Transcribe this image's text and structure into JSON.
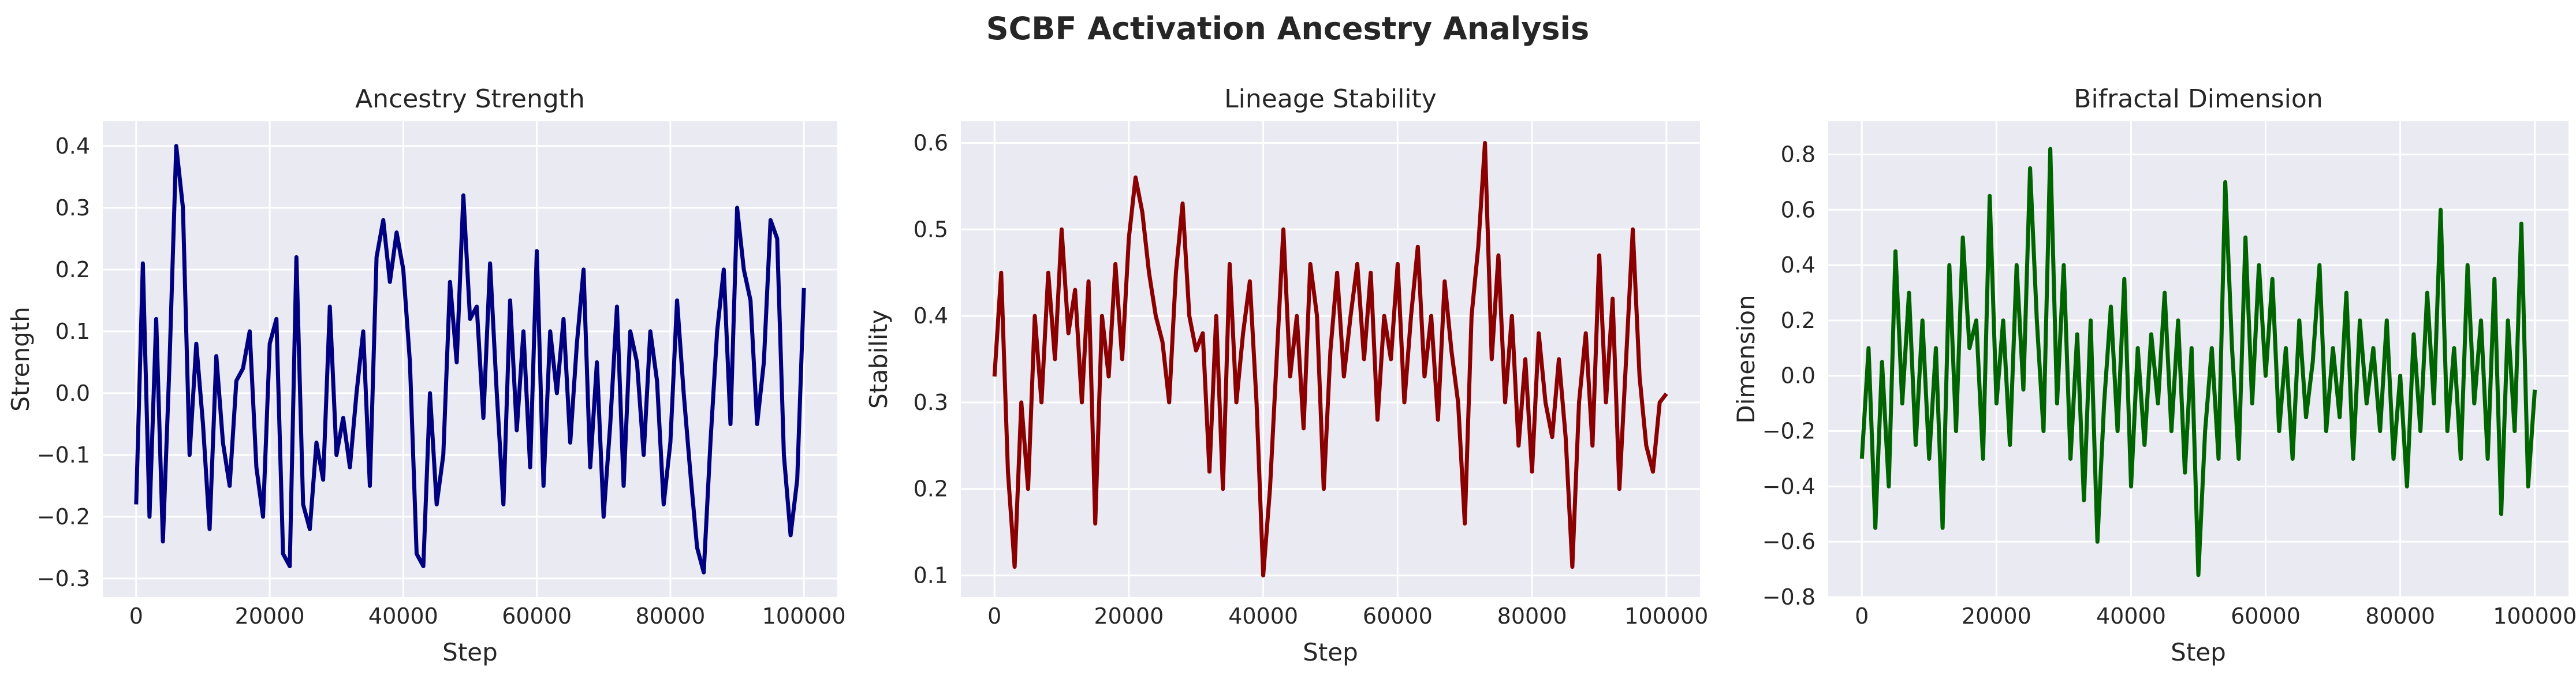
{
  "figure": {
    "suptitle": "SCBF Activation Ancestry Analysis",
    "background": "#ffffff",
    "axes_facecolor": "#eaeaf2",
    "grid_color": "#ffffff",
    "text_color": "#262626"
  },
  "chart_data": [
    {
      "type": "line",
      "title": "Ancestry Strength",
      "xlabel": "Step",
      "ylabel": "Strength",
      "color": "#000080",
      "grid": true,
      "xlim": [
        -5000,
        105000
      ],
      "ylim": [
        -0.33,
        0.44
      ],
      "xticks": [
        0,
        20000,
        40000,
        60000,
        80000,
        100000
      ],
      "xtick_labels": [
        "0",
        "20000",
        "40000",
        "60000",
        "80000",
        "100000"
      ],
      "yticks": [
        -0.3,
        -0.2,
        -0.1,
        0.0,
        0.1,
        0.2,
        0.3,
        0.4
      ],
      "ytick_labels": [
        "−0.3",
        "−0.2",
        "−0.1",
        "0.0",
        "0.1",
        "0.2",
        "0.3",
        "0.4"
      ],
      "x": [
        0,
        1000,
        2000,
        3000,
        4000,
        5000,
        6000,
        7000,
        8000,
        9000,
        10000,
        11000,
        12000,
        13000,
        14000,
        15000,
        16000,
        17000,
        18000,
        19000,
        20000,
        21000,
        22000,
        23000,
        24000,
        25000,
        26000,
        27000,
        28000,
        29000,
        30000,
        31000,
        32000,
        33000,
        34000,
        35000,
        36000,
        37000,
        38000,
        39000,
        40000,
        41000,
        42000,
        43000,
        44000,
        45000,
        46000,
        47000,
        48000,
        49000,
        50000,
        51000,
        52000,
        53000,
        54000,
        55000,
        56000,
        57000,
        58000,
        59000,
        60000,
        61000,
        62000,
        63000,
        64000,
        65000,
        66000,
        67000,
        68000,
        69000,
        70000,
        71000,
        72000,
        73000,
        74000,
        75000,
        76000,
        77000,
        78000,
        79000,
        80000,
        81000,
        82000,
        83000,
        84000,
        85000,
        86000,
        87000,
        88000,
        89000,
        90000,
        91000,
        92000,
        93000,
        94000,
        95000,
        96000,
        97000,
        98000,
        99000,
        100000
      ],
      "y": [
        -0.18,
        0.21,
        -0.2,
        0.12,
        -0.24,
        0.05,
        0.4,
        0.3,
        -0.1,
        0.08,
        -0.05,
        -0.22,
        0.06,
        -0.08,
        -0.15,
        0.02,
        0.04,
        0.1,
        -0.12,
        -0.2,
        0.08,
        0.12,
        -0.26,
        -0.28,
        0.22,
        -0.18,
        -0.22,
        -0.08,
        -0.14,
        0.14,
        -0.1,
        -0.04,
        -0.12,
        0.0,
        0.1,
        -0.15,
        0.22,
        0.28,
        0.18,
        0.26,
        0.2,
        0.05,
        -0.26,
        -0.28,
        0.0,
        -0.18,
        -0.1,
        0.18,
        0.05,
        0.32,
        0.12,
        0.14,
        -0.04,
        0.21,
        0.0,
        -0.18,
        0.15,
        -0.06,
        0.1,
        -0.12,
        0.23,
        -0.15,
        0.1,
        0.0,
        0.12,
        -0.08,
        0.08,
        0.2,
        -0.12,
        0.05,
        -0.2,
        -0.05,
        0.14,
        -0.15,
        0.1,
        0.05,
        -0.1,
        0.1,
        0.02,
        -0.18,
        -0.08,
        0.15,
        0.0,
        -0.13,
        -0.25,
        -0.29,
        -0.08,
        0.1,
        0.2,
        -0.05,
        0.3,
        0.2,
        0.15,
        -0.05,
        0.05,
        0.28,
        0.25,
        -0.1,
        -0.23,
        -0.14,
        0.17
      ]
    },
    {
      "type": "line",
      "title": "Lineage Stability",
      "xlabel": "Step",
      "ylabel": "Stability",
      "color": "#8b0000",
      "grid": true,
      "xlim": [
        -5000,
        105000
      ],
      "ylim": [
        0.075,
        0.625
      ],
      "xticks": [
        0,
        20000,
        40000,
        60000,
        80000,
        100000
      ],
      "xtick_labels": [
        "0",
        "20000",
        "40000",
        "60000",
        "80000",
        "100000"
      ],
      "yticks": [
        0.1,
        0.2,
        0.3,
        0.4,
        0.5,
        0.6
      ],
      "ytick_labels": [
        "0.1",
        "0.2",
        "0.3",
        "0.4",
        "0.5",
        "0.6"
      ],
      "x": [
        0,
        1000,
        2000,
        3000,
        4000,
        5000,
        6000,
        7000,
        8000,
        9000,
        10000,
        11000,
        12000,
        13000,
        14000,
        15000,
        16000,
        17000,
        18000,
        19000,
        20000,
        21000,
        22000,
        23000,
        24000,
        25000,
        26000,
        27000,
        28000,
        29000,
        30000,
        31000,
        32000,
        33000,
        34000,
        35000,
        36000,
        37000,
        38000,
        39000,
        40000,
        41000,
        42000,
        43000,
        44000,
        45000,
        46000,
        47000,
        48000,
        49000,
        50000,
        51000,
        52000,
        53000,
        54000,
        55000,
        56000,
        57000,
        58000,
        59000,
        60000,
        61000,
        62000,
        63000,
        64000,
        65000,
        66000,
        67000,
        68000,
        69000,
        70000,
        71000,
        72000,
        73000,
        74000,
        75000,
        76000,
        77000,
        78000,
        79000,
        80000,
        81000,
        82000,
        83000,
        84000,
        85000,
        86000,
        87000,
        88000,
        89000,
        90000,
        91000,
        92000,
        93000,
        94000,
        95000,
        96000,
        97000,
        98000,
        99000,
        100000
      ],
      "y": [
        0.33,
        0.45,
        0.22,
        0.11,
        0.3,
        0.2,
        0.4,
        0.3,
        0.45,
        0.35,
        0.5,
        0.38,
        0.43,
        0.3,
        0.44,
        0.16,
        0.4,
        0.33,
        0.46,
        0.35,
        0.49,
        0.56,
        0.52,
        0.45,
        0.4,
        0.37,
        0.3,
        0.45,
        0.53,
        0.4,
        0.36,
        0.38,
        0.22,
        0.4,
        0.2,
        0.46,
        0.3,
        0.38,
        0.44,
        0.3,
        0.1,
        0.2,
        0.35,
        0.5,
        0.33,
        0.4,
        0.27,
        0.46,
        0.4,
        0.2,
        0.36,
        0.45,
        0.33,
        0.4,
        0.46,
        0.35,
        0.45,
        0.28,
        0.4,
        0.35,
        0.46,
        0.3,
        0.4,
        0.48,
        0.33,
        0.4,
        0.28,
        0.44,
        0.36,
        0.3,
        0.16,
        0.4,
        0.48,
        0.6,
        0.35,
        0.47,
        0.3,
        0.4,
        0.25,
        0.35,
        0.22,
        0.38,
        0.3,
        0.26,
        0.35,
        0.26,
        0.11,
        0.3,
        0.38,
        0.25,
        0.47,
        0.3,
        0.42,
        0.2,
        0.35,
        0.5,
        0.33,
        0.25,
        0.22,
        0.3,
        0.31
      ]
    },
    {
      "type": "line",
      "title": "Bifractal Dimension",
      "xlabel": "Step",
      "ylabel": "Dimension",
      "color": "#006400",
      "grid": true,
      "xlim": [
        -5000,
        105000
      ],
      "ylim": [
        -0.8,
        0.92
      ],
      "xticks": [
        0,
        20000,
        40000,
        60000,
        80000,
        100000
      ],
      "xtick_labels": [
        "0",
        "20000",
        "40000",
        "60000",
        "80000",
        "100000"
      ],
      "yticks": [
        -0.8,
        -0.6,
        -0.4,
        -0.2,
        0.0,
        0.2,
        0.4,
        0.6,
        0.8
      ],
      "ytick_labels": [
        "−0.8",
        "−0.6",
        "−0.4",
        "−0.2",
        "0.0",
        "0.2",
        "0.4",
        "0.6",
        "0.8"
      ],
      "x": [
        0,
        1000,
        2000,
        3000,
        4000,
        5000,
        6000,
        7000,
        8000,
        9000,
        10000,
        11000,
        12000,
        13000,
        14000,
        15000,
        16000,
        17000,
        18000,
        19000,
        20000,
        21000,
        22000,
        23000,
        24000,
        25000,
        26000,
        27000,
        28000,
        29000,
        30000,
        31000,
        32000,
        33000,
        34000,
        35000,
        36000,
        37000,
        38000,
        39000,
        40000,
        41000,
        42000,
        43000,
        44000,
        45000,
        46000,
        47000,
        48000,
        49000,
        50000,
        51000,
        52000,
        53000,
        54000,
        55000,
        56000,
        57000,
        58000,
        59000,
        60000,
        61000,
        62000,
        63000,
        64000,
        65000,
        66000,
        67000,
        68000,
        69000,
        70000,
        71000,
        72000,
        73000,
        74000,
        75000,
        76000,
        77000,
        78000,
        79000,
        80000,
        81000,
        82000,
        83000,
        84000,
        85000,
        86000,
        87000,
        88000,
        89000,
        90000,
        91000,
        92000,
        93000,
        94000,
        95000,
        96000,
        97000,
        98000,
        99000,
        100000
      ],
      "y": [
        -0.3,
        0.1,
        -0.55,
        0.05,
        -0.4,
        0.45,
        -0.1,
        0.3,
        -0.25,
        0.2,
        -0.3,
        0.1,
        -0.55,
        0.4,
        -0.2,
        0.5,
        0.1,
        0.2,
        -0.3,
        0.65,
        -0.1,
        0.2,
        -0.25,
        0.4,
        -0.05,
        0.75,
        0.2,
        -0.2,
        0.82,
        -0.1,
        0.4,
        -0.3,
        0.15,
        -0.45,
        0.2,
        -0.6,
        -0.1,
        0.25,
        -0.2,
        0.35,
        -0.4,
        0.1,
        -0.25,
        0.15,
        -0.1,
        0.3,
        -0.2,
        0.2,
        -0.35,
        0.1,
        -0.72,
        -0.2,
        0.1,
        -0.3,
        0.7,
        0.1,
        -0.3,
        0.5,
        -0.1,
        0.4,
        0.0,
        0.35,
        -0.2,
        0.1,
        -0.3,
        0.2,
        -0.15,
        0.05,
        0.4,
        -0.2,
        0.1,
        -0.15,
        0.3,
        -0.3,
        0.2,
        -0.1,
        0.1,
        -0.2,
        0.2,
        -0.3,
        0.0,
        -0.4,
        0.15,
        -0.2,
        0.3,
        -0.1,
        0.6,
        -0.2,
        0.1,
        -0.3,
        0.4,
        -0.1,
        0.2,
        -0.3,
        0.35,
        -0.5,
        0.2,
        -0.2,
        0.55,
        -0.4,
        -0.05
      ]
    }
  ]
}
